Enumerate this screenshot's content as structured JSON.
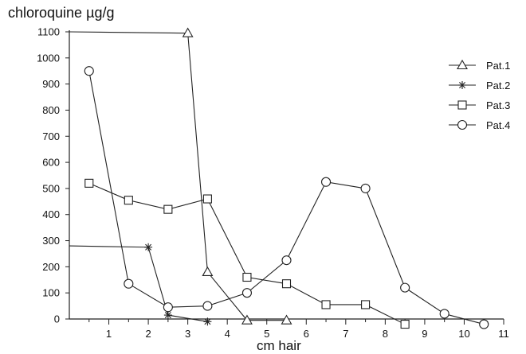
{
  "chart_data": {
    "type": "line",
    "ylabel": "chloroquine µg/g",
    "xlabel": "cm hair",
    "xlim": [
      0,
      11
    ],
    "ylim": [
      0,
      1100
    ],
    "xticks": [
      1,
      2,
      3,
      4,
      5,
      6,
      7,
      8,
      9,
      10,
      11
    ],
    "yticks": [
      0,
      100,
      200,
      300,
      400,
      500,
      600,
      700,
      800,
      900,
      1000,
      1100
    ],
    "grid": false,
    "legend_position": "top-right",
    "series": [
      {
        "name": "Pat.1",
        "marker": "triangle",
        "points": [
          [
            0,
            1100
          ],
          [
            3,
            1095
          ],
          [
            3.5,
            180
          ],
          [
            4.5,
            -5
          ],
          [
            5.5,
            -5
          ]
        ]
      },
      {
        "name": "Pat.2",
        "marker": "asterisk",
        "points": [
          [
            0,
            280
          ],
          [
            2,
            275
          ],
          [
            2.5,
            15
          ],
          [
            3.5,
            -10
          ]
        ]
      },
      {
        "name": "Pat.3",
        "marker": "square",
        "points": [
          [
            0.5,
            520
          ],
          [
            1.5,
            455
          ],
          [
            2.5,
            420
          ],
          [
            3.5,
            460
          ],
          [
            4.5,
            160
          ],
          [
            5.5,
            135
          ],
          [
            6.5,
            55
          ],
          [
            7.5,
            55
          ],
          [
            8.5,
            -20
          ]
        ]
      },
      {
        "name": "Pat.4",
        "marker": "circle",
        "points": [
          [
            0.5,
            950
          ],
          [
            1.5,
            135
          ],
          [
            2.5,
            45
          ],
          [
            3.5,
            50
          ],
          [
            4.5,
            100
          ],
          [
            5.5,
            225
          ],
          [
            6.5,
            525
          ],
          [
            7.5,
            500
          ],
          [
            8.5,
            120
          ],
          [
            9.5,
            20
          ],
          [
            10.5,
            -20
          ]
        ]
      }
    ]
  }
}
